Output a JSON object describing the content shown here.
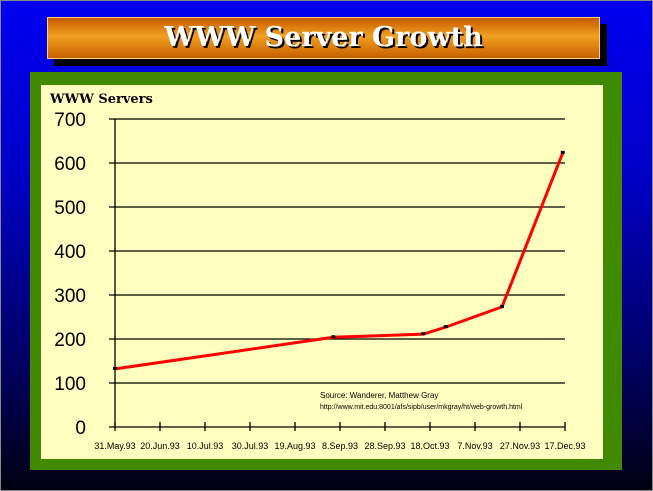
{
  "slide_title": "WWW Server Growth",
  "colors": {
    "line": "#ff0000",
    "plot_bg": "#ffffc0",
    "panel": "#3f8a00",
    "title_bar": "#e08a10"
  },
  "chart_data": {
    "type": "line",
    "title": "",
    "ylabel": "WWW Servers",
    "xlabel": "",
    "ylim": [
      0,
      700
    ],
    "yticks": [
      0,
      100,
      200,
      300,
      400,
      500,
      600,
      700
    ],
    "xtick_labels": [
      "31.May.93",
      "20.Jun.93",
      "10.Jul.93",
      "30.Jul.93",
      "19.Aug.93",
      "8.Sep.93",
      "28.Sep.93",
      "18.Oct.93",
      "7.Nov.93",
      "27.Nov.93",
      "17.Dec.93"
    ],
    "xlim": [
      "1993-05-31",
      "1993-12-17"
    ],
    "grid": "horizontal",
    "series": [
      {
        "x": [
          "1993-05-31",
          "1993-09-05",
          "1993-10-15",
          "1993-10-25",
          "1993-11-19",
          "1993-12-16"
        ],
        "y": [
          132,
          204,
          211,
          227,
          273,
          623
        ]
      }
    ],
    "annotations": [
      "Source: Wanderer, Matthew Gray",
      "http://www.mit.edu:8001/afs/sipb/user/mkgray/ht/web-growth.html"
    ]
  }
}
